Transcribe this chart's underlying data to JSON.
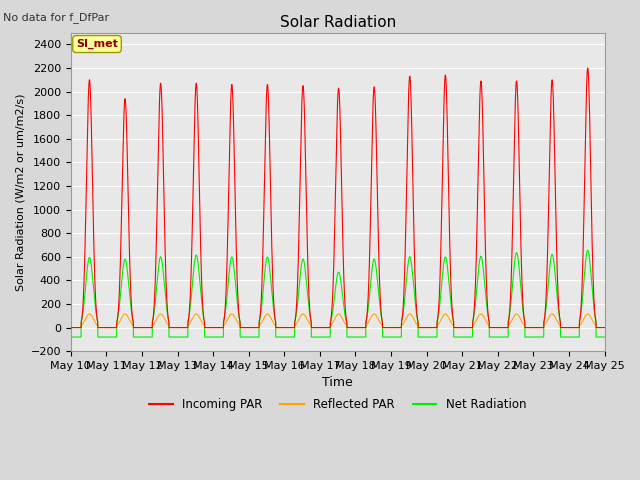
{
  "title": "Solar Radiation",
  "subtitle": "No data for f_DfPar",
  "xlabel": "Time",
  "ylabel": "Solar Radiation (W/m2 or um/m2/s)",
  "ylim": [
    -200,
    2500
  ],
  "yticks": [
    -200,
    0,
    200,
    400,
    600,
    800,
    1000,
    1200,
    1400,
    1600,
    1800,
    2000,
    2200,
    2400
  ],
  "num_days": 15,
  "num_points_per_day": 288,
  "legend_labels": [
    "Incoming PAR",
    "Reflected PAR",
    "Net Radiation"
  ],
  "background_color": "#d8d8d8",
  "plot_bg_color": "#e8e8e8",
  "grid_color": "#ffffff",
  "annotation_box_color": "#ffff99",
  "annotation_text": "SI_met",
  "annotation_text_color": "#8b0000",
  "incoming_peaks": [
    2100,
    1940,
    2070,
    2070,
    2060,
    2060,
    2050,
    2030,
    2040,
    2130,
    2140,
    2090,
    2090,
    2100,
    2200
  ],
  "reflected_peak": 115,
  "net_peaks": [
    595,
    580,
    600,
    615,
    598,
    598,
    580,
    470,
    580,
    600,
    598,
    605,
    635,
    620,
    655
  ],
  "night_net": -80,
  "incoming_color": "#ff0000",
  "reflected_color": "#ffa500",
  "net_color": "#00ee00",
  "day_start": 0.29,
  "day_end": 0.76
}
